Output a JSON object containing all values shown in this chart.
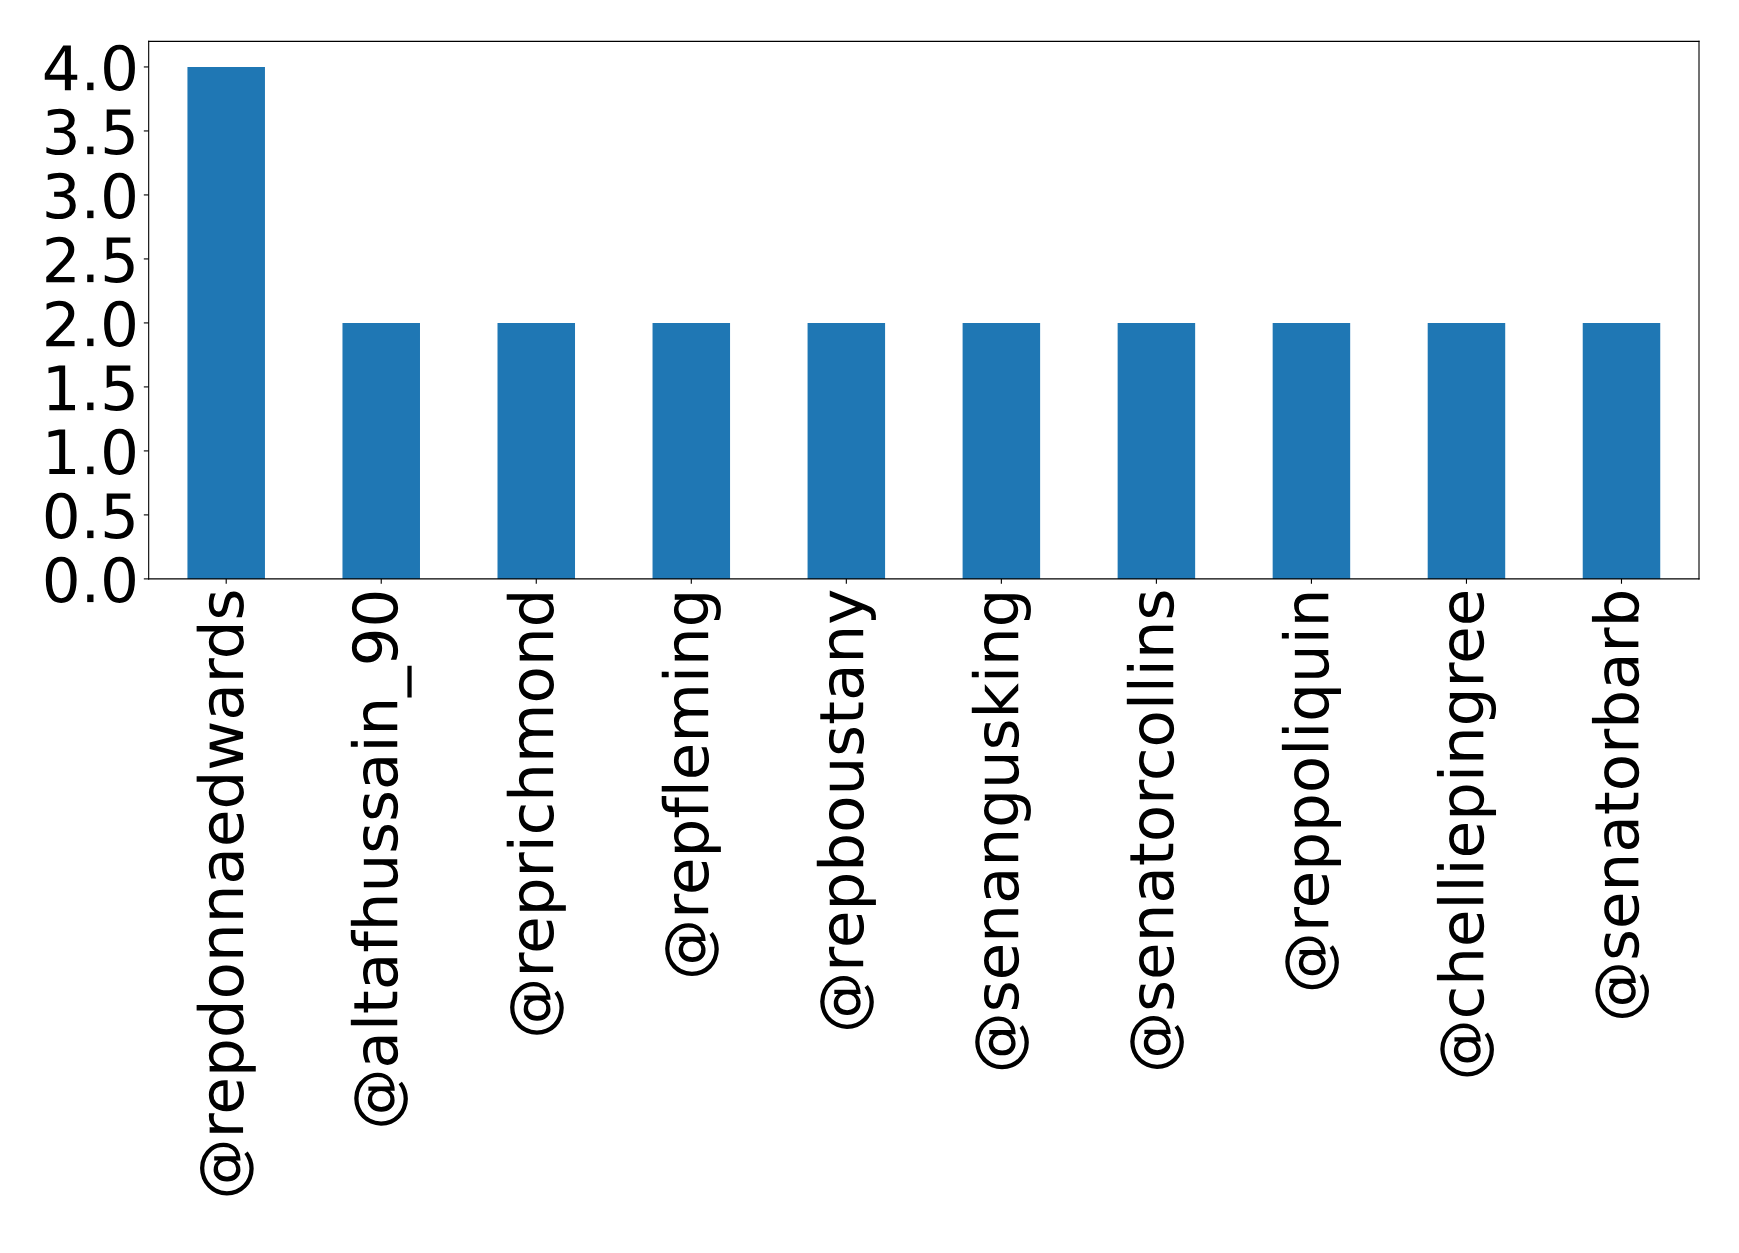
{
  "chart_data": {
    "type": "bar",
    "categories": [
      "@repdonnaedwards",
      "@altafhussain_90",
      "@reprichmond",
      "@repfleming",
      "@repboustany",
      "@senangusking",
      "@senatorcollins",
      "@reppoliquin",
      "@chelliepingree",
      "@senatorbarb"
    ],
    "values": [
      4,
      2,
      2,
      2,
      2,
      2,
      2,
      2,
      2,
      2
    ],
    "color": "#1f77b4",
    "ylim": [
      0,
      4.2
    ],
    "yticks": [
      {
        "value": 0,
        "label": "0.0"
      },
      {
        "value": 0.5,
        "label": "0.5"
      },
      {
        "value": 1,
        "label": "1.0"
      },
      {
        "value": 1.5,
        "label": "1.5"
      },
      {
        "value": 2,
        "label": "2.0"
      },
      {
        "value": 2.5,
        "label": "2.5"
      },
      {
        "value": 3,
        "label": "3.0"
      },
      {
        "value": 3.5,
        "label": "3.5"
      },
      {
        "value": 4,
        "label": "4.0"
      }
    ],
    "grid": false
  }
}
